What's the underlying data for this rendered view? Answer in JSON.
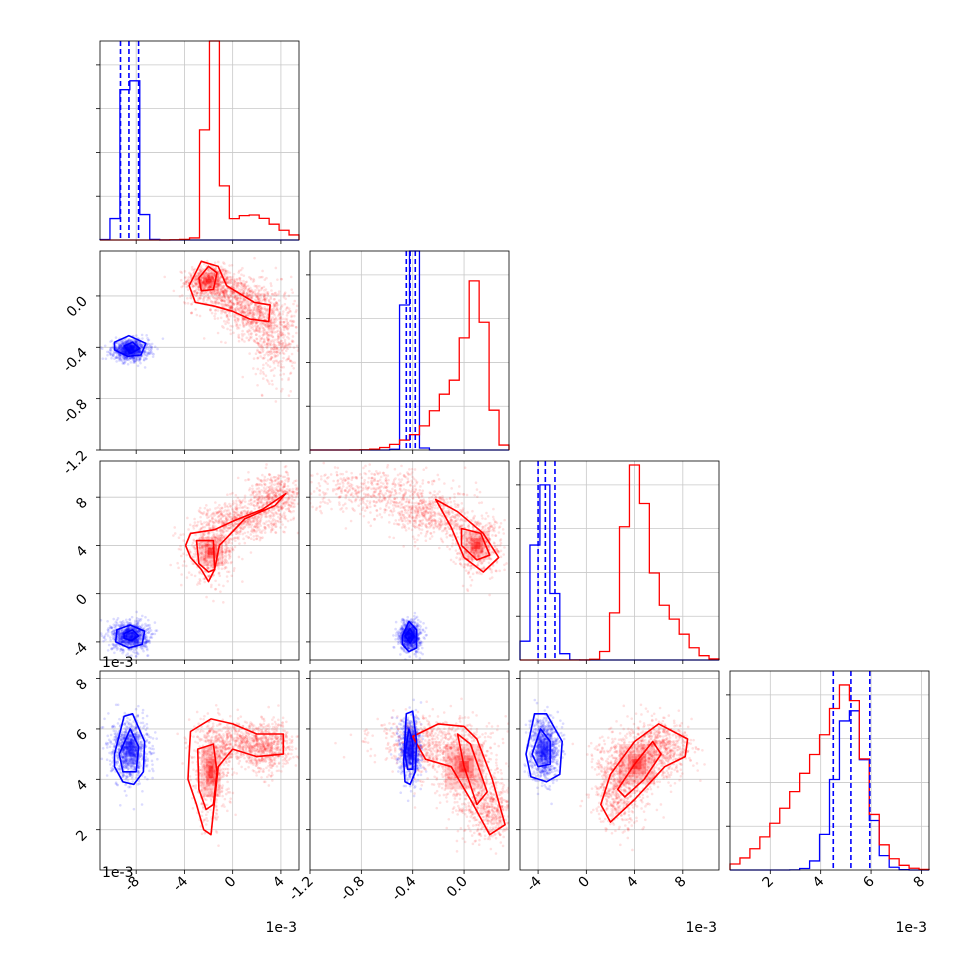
{
  "chart_data": {
    "type": "corner",
    "parameters": [
      {
        "id": "p0",
        "range": [
          -11,
          5.5
        ],
        "ticks": [
          "-8",
          "-4",
          "0",
          "4"
        ],
        "tick_values": [
          -8,
          -4,
          0,
          4
        ],
        "offset": "1e-3"
      },
      {
        "id": "p1",
        "range": [
          -1.2,
          0.35
        ],
        "ticks": [
          "-1.2",
          "-0.8",
          "-0.4",
          "0.0"
        ],
        "tick_values": [
          -1.2,
          -0.8,
          -0.4,
          0.0
        ],
        "offset": ""
      },
      {
        "id": "p2",
        "range": [
          -5.5,
          11
        ],
        "ticks": [
          "-4",
          "0",
          "4",
          "8"
        ],
        "tick_values": [
          -4,
          0,
          4,
          8
        ],
        "offset": "1e-3"
      },
      {
        "id": "p3",
        "range": [
          0.4,
          8.3
        ],
        "ticks": [
          "2",
          "4",
          "6",
          "8"
        ],
        "tick_values": [
          2,
          4,
          6,
          8
        ],
        "offset": "1e-3"
      }
    ],
    "grid": true,
    "series": [
      {
        "color": "#0000ff",
        "means": [
          -8.5,
          -0.42,
          -3.5,
          5.2
        ],
        "sds": [
          0.75,
          0.04,
          0.6,
          0.6
        ],
        "quantiles": [
          [
            -9.3,
            -8.6,
            -7.8
          ],
          [
            -0.45,
            -0.42,
            -0.38
          ],
          [
            -4.0,
            -3.4,
            -2.6
          ],
          [
            4.5,
            5.2,
            5.95
          ]
        ]
      },
      {
        "color": "#ff0000",
        "means": [
          -1.5,
          0.05,
          4.5,
          4.3
        ]
      }
    ],
    "hist_2d": [
      {
        "row": 1,
        "col": 0,
        "red_cloud": [
          [
            -2.0,
            0.12,
            0.9,
            0.06
          ],
          [
            -0.5,
            0.02,
            1.4,
            0.08
          ],
          [
            1.5,
            -0.12,
            1.2,
            0.1
          ],
          [
            3.5,
            -0.3,
            0.9,
            0.18
          ]
        ],
        "red_contours": [
          [
            [
              -3.6,
              0.08
            ],
            [
              -2.6,
              0.27
            ],
            [
              -1.2,
              0.23
            ],
            [
              -0.5,
              0.08
            ],
            [
              1.8,
              -0.05
            ],
            [
              3.1,
              -0.07
            ],
            [
              3.0,
              -0.2
            ],
            [
              1.4,
              -0.18
            ],
            [
              0.0,
              -0.12
            ],
            [
              -1.5,
              -0.08
            ],
            [
              -3.1,
              -0.05
            ]
          ],
          [
            [
              -2.8,
              0.14
            ],
            [
              -2.0,
              0.23
            ],
            [
              -1.3,
              0.18
            ],
            [
              -1.6,
              0.05
            ],
            [
              -2.6,
              0.04
            ]
          ]
        ],
        "blue_contours": [
          [
            [
              -9.8,
              -0.36
            ],
            [
              -8.6,
              -0.31
            ],
            [
              -7.2,
              -0.37
            ],
            [
              -7.6,
              -0.46
            ],
            [
              -8.7,
              -0.47
            ],
            [
              -9.8,
              -0.42
            ]
          ],
          [
            [
              -9.0,
              -0.39
            ],
            [
              -8.3,
              -0.36
            ],
            [
              -7.7,
              -0.41
            ],
            [
              -8.5,
              -0.45
            ]
          ]
        ]
      },
      {
        "row": 2,
        "col": 0,
        "red_cloud": [
          [
            -1.8,
            3.5,
            1.0,
            1.2
          ],
          [
            0.5,
            6.0,
            1.5,
            0.8
          ],
          [
            3.5,
            8.0,
            1.2,
            1.0
          ]
        ],
        "red_contours": [
          [
            [
              -3.5,
              5.0
            ],
            [
              -1.5,
              5.3
            ],
            [
              0.0,
              6.0
            ],
            [
              2.5,
              7.0
            ],
            [
              4.4,
              8.3
            ],
            [
              3.5,
              7.3
            ],
            [
              1.0,
              6.2
            ],
            [
              -1.1,
              4.0
            ],
            [
              -1.5,
              2.0
            ],
            [
              -2.0,
              1.0
            ],
            [
              -2.6,
              2.0
            ],
            [
              -3.5,
              3.0
            ],
            [
              -3.9,
              4.0
            ]
          ],
          [
            [
              -3.0,
              4.4
            ],
            [
              -1.6,
              4.4
            ],
            [
              -1.5,
              2.0
            ],
            [
              -2.0,
              1.8
            ],
            [
              -2.8,
              2.5
            ]
          ]
        ],
        "blue_contours": [
          [
            [
              -9.6,
              -3.0
            ],
            [
              -8.5,
              -2.6
            ],
            [
              -7.3,
              -3.1
            ],
            [
              -7.5,
              -4.2
            ],
            [
              -8.6,
              -4.5
            ],
            [
              -9.7,
              -4.0
            ]
          ],
          [
            [
              -9.0,
              -3.3
            ],
            [
              -8.3,
              -3.0
            ],
            [
              -7.8,
              -3.5
            ],
            [
              -8.4,
              -3.9
            ],
            [
              -9.0,
              -3.7
            ]
          ]
        ]
      },
      {
        "row": 2,
        "col": 1,
        "red_cloud": [
          [
            0.1,
            4.0,
            0.1,
            1.2
          ],
          [
            -0.25,
            6.5,
            0.15,
            1.0
          ],
          [
            -0.7,
            8.5,
            0.25,
            1.0
          ]
        ],
        "red_contours": [
          [
            [
              -0.22,
              7.8
            ],
            [
              -0.05,
              6.8
            ],
            [
              0.15,
              5.0
            ],
            [
              0.27,
              3.0
            ],
            [
              0.15,
              1.8
            ],
            [
              0.0,
              3.0
            ],
            [
              -0.1,
              5.5
            ]
          ],
          [
            [
              -0.02,
              5.4
            ],
            [
              0.13,
              5.0
            ],
            [
              0.2,
              3.2
            ],
            [
              0.1,
              2.8
            ],
            [
              -0.02,
              4.0
            ]
          ]
        ],
        "blue_contours": [
          [
            [
              -0.48,
              -3.5
            ],
            [
              -0.43,
              -2.3
            ],
            [
              -0.37,
              -3.0
            ],
            [
              -0.37,
              -4.5
            ],
            [
              -0.43,
              -4.8
            ],
            [
              -0.48,
              -4.2
            ]
          ],
          [
            [
              -0.46,
              -3.5
            ],
            [
              -0.42,
              -2.9
            ],
            [
              -0.39,
              -3.5
            ],
            [
              -0.42,
              -4.1
            ]
          ]
        ]
      },
      {
        "row": 3,
        "col": 0,
        "red_cloud": [
          [
            -1.8,
            4.3,
            0.8,
            1.0
          ],
          [
            0.5,
            5.4,
            1.6,
            0.4
          ],
          [
            3.0,
            5.3,
            1.0,
            0.5
          ]
        ],
        "red_contours": [
          [
            [
              -3.5,
              5.9
            ],
            [
              -1.8,
              6.4
            ],
            [
              0.0,
              6.2
            ],
            [
              2.0,
              5.8
            ],
            [
              4.2,
              5.8
            ],
            [
              4.2,
              5.0
            ],
            [
              2.0,
              4.9
            ],
            [
              0.0,
              5.2
            ],
            [
              -1.2,
              4.5
            ],
            [
              -1.8,
              1.8
            ],
            [
              -2.4,
              2.0
            ],
            [
              -3.0,
              3.0
            ],
            [
              -3.7,
              4.0
            ],
            [
              -3.6,
              5.0
            ]
          ],
          [
            [
              -2.9,
              5.2
            ],
            [
              -1.6,
              5.4
            ],
            [
              -1.3,
              4.3
            ],
            [
              -1.6,
              3.0
            ],
            [
              -2.2,
              2.8
            ],
            [
              -2.8,
              3.6
            ]
          ]
        ],
        "blue_contours": [
          [
            [
              -9.8,
              5.0
            ],
            [
              -9.0,
              6.5
            ],
            [
              -8.3,
              6.6
            ],
            [
              -7.3,
              5.5
            ],
            [
              -7.4,
              4.3
            ],
            [
              -8.2,
              3.8
            ],
            [
              -9.1,
              3.9
            ],
            [
              -9.8,
              4.5
            ]
          ],
          [
            [
              -9.4,
              5.0
            ],
            [
              -8.5,
              6.0
            ],
            [
              -7.8,
              5.3
            ],
            [
              -8.0,
              4.3
            ],
            [
              -9.1,
              4.3
            ]
          ]
        ]
      },
      {
        "row": 3,
        "col": 1,
        "red_cloud": [
          [
            0.0,
            4.5,
            0.15,
            0.9
          ],
          [
            -0.3,
            5.4,
            0.2,
            0.5
          ],
          [
            0.2,
            2.8,
            0.1,
            0.6
          ]
        ],
        "red_contours": [
          [
            [
              -0.4,
              5.7
            ],
            [
              -0.2,
              6.2
            ],
            [
              0.0,
              6.1
            ],
            [
              0.1,
              5.6
            ],
            [
              0.22,
              4.0
            ],
            [
              0.32,
              2.2
            ],
            [
              0.2,
              1.8
            ],
            [
              0.05,
              3.2
            ],
            [
              -0.1,
              4.5
            ],
            [
              -0.3,
              4.8
            ]
          ],
          [
            [
              -0.05,
              5.8
            ],
            [
              0.05,
              5.4
            ],
            [
              0.18,
              3.5
            ],
            [
              0.1,
              3.0
            ],
            [
              0.0,
              4.5
            ]
          ]
        ],
        "blue_contours": [
          [
            [
              -0.47,
              4.7
            ],
            [
              -0.45,
              6.6
            ],
            [
              -0.4,
              6.7
            ],
            [
              -0.37,
              5.5
            ],
            [
              -0.38,
              4.3
            ],
            [
              -0.42,
              3.8
            ],
            [
              -0.46,
              3.9
            ]
          ],
          [
            [
              -0.46,
              5.0
            ],
            [
              -0.43,
              6.0
            ],
            [
              -0.4,
              5.5
            ],
            [
              -0.4,
              4.4
            ],
            [
              -0.44,
              4.4
            ]
          ]
        ]
      },
      {
        "row": 3,
        "col": 2,
        "red_cloud": [
          [
            4.2,
            4.6,
            1.5,
            0.8
          ],
          [
            2.5,
            3.6,
            1.0,
            0.8
          ],
          [
            6.5,
            5.3,
            1.2,
            0.5
          ]
        ],
        "red_contours": [
          [
            [
              1.2,
              3.0
            ],
            [
              2.0,
              4.2
            ],
            [
              4.0,
              5.5
            ],
            [
              6.0,
              6.2
            ],
            [
              8.4,
              5.6
            ],
            [
              8.2,
              4.9
            ],
            [
              6.5,
              4.5
            ],
            [
              4.0,
              3.2
            ],
            [
              2.0,
              2.3
            ]
          ],
          [
            [
              2.6,
              3.6
            ],
            [
              4.0,
              4.6
            ],
            [
              5.5,
              5.5
            ],
            [
              6.2,
              5.0
            ],
            [
              4.8,
              4.0
            ],
            [
              3.2,
              3.3
            ]
          ]
        ],
        "blue_contours": [
          [
            [
              -5.0,
              5.0
            ],
            [
              -4.3,
              6.6
            ],
            [
              -3.3,
              6.6
            ],
            [
              -2.0,
              5.5
            ],
            [
              -2.2,
              4.2
            ],
            [
              -3.3,
              3.9
            ],
            [
              -4.6,
              4.1
            ]
          ],
          [
            [
              -4.5,
              5.0
            ],
            [
              -3.8,
              6.0
            ],
            [
              -3.0,
              5.5
            ],
            [
              -3.0,
              4.6
            ],
            [
              -4.0,
              4.5
            ]
          ]
        ]
      }
    ]
  }
}
